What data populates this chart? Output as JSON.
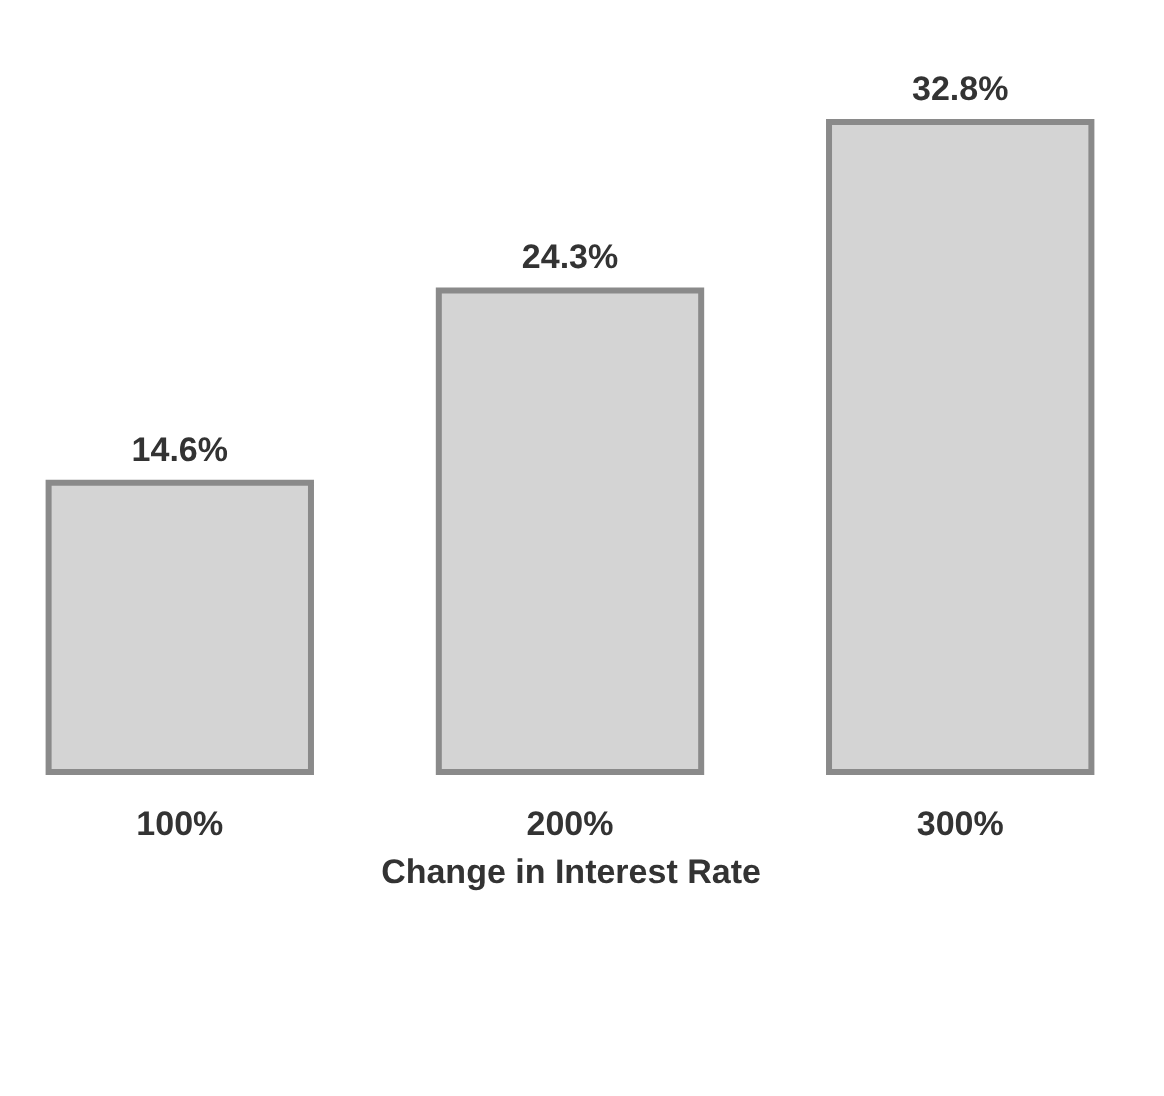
{
  "chart_data": {
    "type": "bar",
    "xlabel": "Change in Interest Rate",
    "categories": [
      "100%",
      "200%",
      "300%"
    ],
    "values": [
      14.6,
      24.3,
      32.8
    ],
    "value_labels": [
      "14.6%",
      "24.3%",
      "32.8%"
    ],
    "color": "#d4d4d4"
  }
}
